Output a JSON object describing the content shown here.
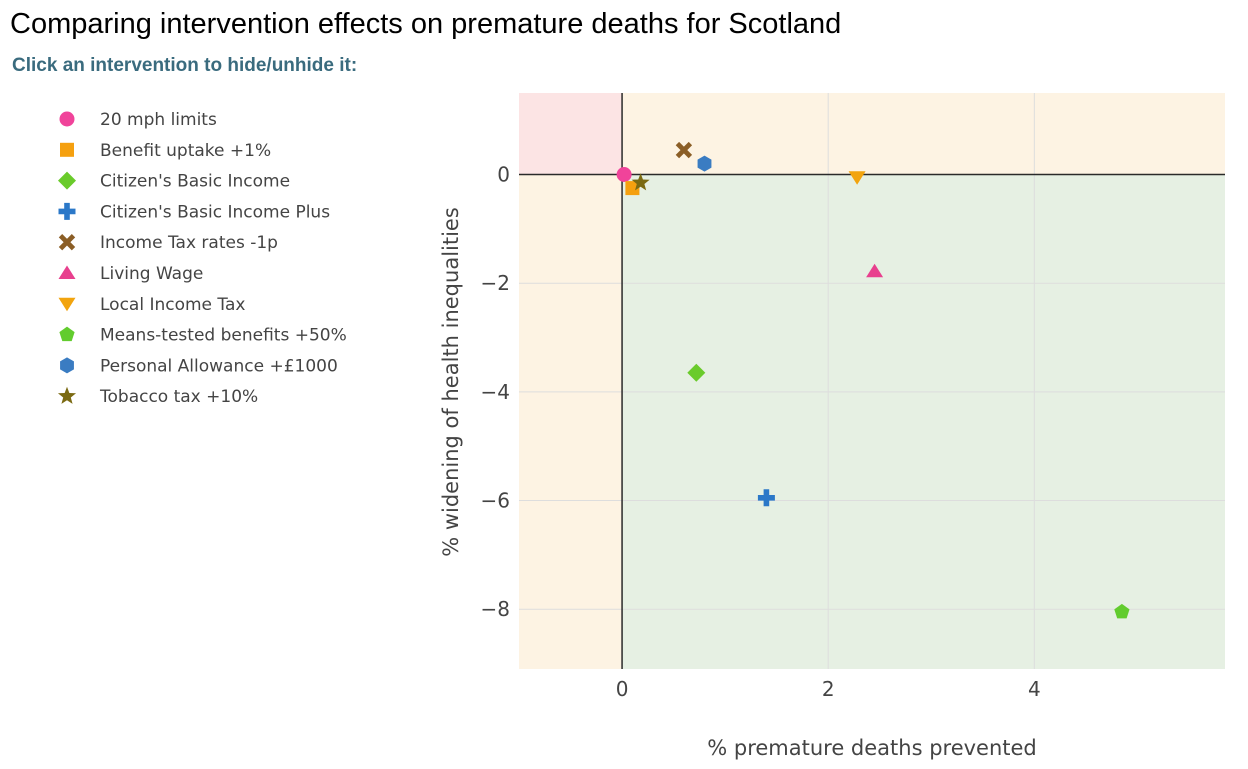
{
  "page": {
    "title": "Comparing intervention effects on premature deaths for Scotland",
    "instruction": "Click an intervention to hide/unhide it:"
  },
  "chart_data": {
    "type": "scatter",
    "xlabel": "% premature deaths prevented",
    "ylabel": "% widening of health inequalities",
    "xlim": [
      -1,
      5.85
    ],
    "ylim": [
      -9.1,
      1.5
    ],
    "xticks": [
      0,
      2,
      4
    ],
    "yticks": [
      0,
      -2,
      -4,
      -6,
      -8
    ],
    "grid": true,
    "legend_position": "left",
    "quadrant_colors": {
      "top_left": "#fce4e4",
      "top_right": "#fdf3e3",
      "bottom_left": "#fdf3e3",
      "bottom_right": "#e6f0e3"
    },
    "series": [
      {
        "name": "20 mph limits",
        "x": 0.02,
        "y": 0.0,
        "marker": "circle",
        "color": "#f0439a"
      },
      {
        "name": "Benefit uptake +1%",
        "x": 0.1,
        "y": -0.25,
        "marker": "square",
        "color": "#f5a00f"
      },
      {
        "name": "Citizen's Basic Income",
        "x": 0.72,
        "y": -3.65,
        "marker": "diamond",
        "color": "#6acb2b"
      },
      {
        "name": "Citizen's Basic Income Plus",
        "x": 1.4,
        "y": -5.95,
        "marker": "cross",
        "color": "#2b78c8"
      },
      {
        "name": "Income Tax rates -1p",
        "x": 0.6,
        "y": 0.45,
        "marker": "x",
        "color": "#8b5e26"
      },
      {
        "name": "Living Wage",
        "x": 2.45,
        "y": -1.78,
        "marker": "triangle-up",
        "color": "#e8408e"
      },
      {
        "name": "Local Income Tax",
        "x": 2.28,
        "y": -0.05,
        "marker": "triangle-down",
        "color": "#f2a40e"
      },
      {
        "name": "Means-tested benefits +50%",
        "x": 4.85,
        "y": -8.05,
        "marker": "pentagon",
        "color": "#62cc2e"
      },
      {
        "name": "Personal Allowance +£1000",
        "x": 0.8,
        "y": 0.2,
        "marker": "hexagon",
        "color": "#3a7cc2"
      },
      {
        "name": "Tobacco tax +10%",
        "x": 0.18,
        "y": -0.15,
        "marker": "star",
        "color": "#7b6a12"
      }
    ]
  }
}
